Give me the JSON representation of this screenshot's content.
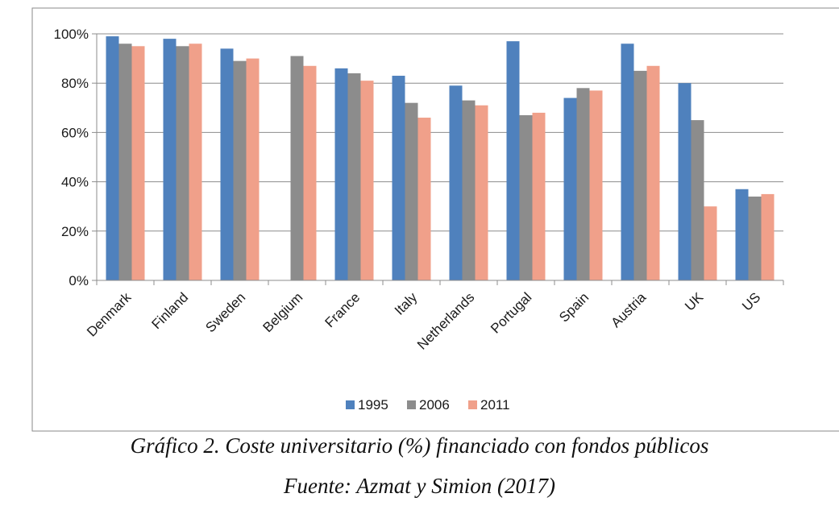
{
  "chart_data": {
    "type": "bar",
    "categories": [
      "Denmark",
      "Finland",
      "Sweden",
      "Belgium",
      "France",
      "Italy",
      "Netherlands",
      "Portugal",
      "Spain",
      "Austria",
      "UK",
      "US"
    ],
    "series": [
      {
        "name": "1995",
        "color": "#4f81bd",
        "values": [
          99,
          98,
          94,
          null,
          86,
          83,
          79,
          97,
          74,
          96,
          80,
          37
        ]
      },
      {
        "name": "2006",
        "color": "#8c8c8c",
        "values": [
          96,
          95,
          89,
          91,
          84,
          72,
          73,
          67,
          78,
          85,
          65,
          34
        ]
      },
      {
        "name": "2011",
        "color": "#f0a08a",
        "values": [
          95,
          96,
          90,
          87,
          81,
          66,
          71,
          68,
          77,
          87,
          30,
          35
        ]
      }
    ],
    "yticks": [
      "0%",
      "20%",
      "40%",
      "60%",
      "80%",
      "100%"
    ],
    "ylim": [
      0,
      100
    ],
    "grid": true,
    "legend_position": "bottom"
  },
  "caption": {
    "title": "Gráfico 2. Coste universitario (%) financiado con fondos públicos",
    "source": "Fuente: Azmat y Simion (2017)"
  }
}
